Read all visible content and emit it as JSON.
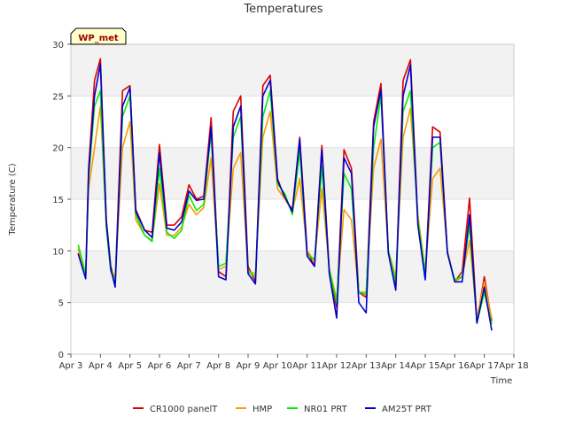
{
  "chart_data": {
    "type": "line",
    "title": "Temperatures",
    "xlabel": "Time",
    "ylabel": "Temperature (C)",
    "site_label": "WP_met",
    "ylim": [
      0,
      30
    ],
    "xlim": [
      3,
      18
    ],
    "yticks": [
      0,
      5,
      10,
      15,
      20,
      25,
      30
    ],
    "xticks": [
      {
        "value": 3,
        "label": "Apr 3"
      },
      {
        "value": 4,
        "label": "Apr 4"
      },
      {
        "value": 5,
        "label": "Apr 5"
      },
      {
        "value": 6,
        "label": "Apr 6"
      },
      {
        "value": 7,
        "label": "Apr 7"
      },
      {
        "value": 8,
        "label": "Apr 8"
      },
      {
        "value": 9,
        "label": "Apr 9"
      },
      {
        "value": 10,
        "label": "Apr 10"
      },
      {
        "value": 11,
        "label": "Apr 11"
      },
      {
        "value": 12,
        "label": "Apr 12"
      },
      {
        "value": 13,
        "label": "Apr 13"
      },
      {
        "value": 14,
        "label": "Apr 14"
      },
      {
        "value": 15,
        "label": "Apr 15"
      },
      {
        "value": 16,
        "label": "Apr 16"
      },
      {
        "value": 17,
        "label": "Apr 17"
      },
      {
        "value": 18,
        "label": "Apr 18"
      }
    ],
    "x": [
      3.25,
      3.5,
      3.6,
      3.8,
      4.0,
      4.2,
      4.35,
      4.5,
      4.75,
      5.0,
      5.2,
      5.5,
      5.75,
      6.0,
      6.25,
      6.5,
      6.75,
      7.0,
      7.25,
      7.5,
      7.75,
      8.0,
      8.25,
      8.5,
      8.75,
      9.0,
      9.25,
      9.5,
      9.75,
      10.0,
      10.25,
      10.5,
      10.75,
      11.0,
      11.25,
      11.5,
      11.75,
      12.0,
      12.25,
      12.5,
      12.75,
      13.0,
      13.25,
      13.5,
      13.75,
      14.0,
      14.25,
      14.5,
      14.75,
      15.0,
      15.25,
      15.5,
      15.75,
      16.0,
      16.25,
      16.5,
      16.75,
      17.0,
      17.25
    ],
    "series": [
      {
        "name": "CR1000 panelT",
        "color": "#dd0000",
        "values": [
          9.8,
          7.5,
          18,
          26.5,
          28.6,
          13,
          8.5,
          7,
          25.5,
          26,
          14,
          12,
          11.8,
          20.3,
          12.5,
          12.5,
          13.3,
          16.4,
          15,
          15.3,
          22.9,
          8,
          7.5,
          23.5,
          25,
          8.5,
          7,
          26,
          27,
          17,
          15,
          14,
          21,
          10,
          8.5,
          20.2,
          8,
          4.5,
          19.8,
          18,
          6,
          5.5,
          22.5,
          26.2,
          10,
          6.5,
          26.5,
          28.5,
          13,
          7.5,
          22,
          21.5,
          10,
          7,
          8,
          15.1,
          3.2,
          7.5,
          3.2
        ]
      },
      {
        "name": "HMP",
        "color": "#ff9900",
        "values": [
          10.2,
          7.6,
          16,
          20,
          24,
          12.5,
          8.2,
          7.5,
          20,
          22.5,
          13,
          11.5,
          11,
          16.5,
          11.5,
          11.5,
          12.3,
          14.5,
          13.5,
          14.2,
          19,
          8.2,
          8.5,
          18,
          19.5,
          8,
          7.8,
          21,
          23.5,
          16,
          15,
          13.8,
          17,
          10,
          9,
          16,
          8.3,
          5.3,
          14,
          13,
          6,
          6,
          18,
          20.8,
          10,
          7.5,
          21,
          23.8,
          13.5,
          8,
          17,
          18,
          10,
          7,
          7.5,
          11,
          3.5,
          7,
          3.5
        ]
      },
      {
        "name": "NR01 PRT",
        "color": "#00ee00",
        "values": [
          10.6,
          7.7,
          17,
          24,
          25.5,
          12.2,
          8,
          7.2,
          23,
          25,
          13.5,
          11.5,
          10.9,
          18,
          11.8,
          11.2,
          12,
          15.4,
          13.9,
          14.5,
          21.5,
          8.5,
          8.8,
          21,
          23,
          8,
          7.5,
          23,
          25.5,
          16.5,
          15.5,
          13.5,
          19.7,
          9.6,
          9.2,
          18.2,
          8.2,
          5,
          17.5,
          16,
          6,
          5.8,
          20,
          25,
          10,
          7,
          23.5,
          25.5,
          13,
          7.8,
          20,
          20.5,
          9.8,
          7.2,
          7.5,
          12.5,
          3,
          6,
          2.9
        ]
      },
      {
        "name": "AM25T PRT",
        "color": "#0000cc",
        "values": [
          9.7,
          7.3,
          17.5,
          25,
          28.1,
          12.8,
          8.3,
          6.5,
          24,
          25.8,
          13.8,
          12,
          11.3,
          19.5,
          12.2,
          12,
          12.8,
          15.8,
          14.9,
          15,
          22,
          7.5,
          7.2,
          22,
          24,
          7.8,
          6.8,
          25,
          26.5,
          16.8,
          15.2,
          13.8,
          20.8,
          9.5,
          8.5,
          19.8,
          7.8,
          3.5,
          19,
          17.5,
          5,
          4,
          22,
          25.6,
          9.8,
          6.2,
          25,
          28,
          12.5,
          7.2,
          21,
          21,
          9.8,
          7,
          7,
          13.5,
          3,
          6.5,
          2.3
        ]
      }
    ]
  }
}
